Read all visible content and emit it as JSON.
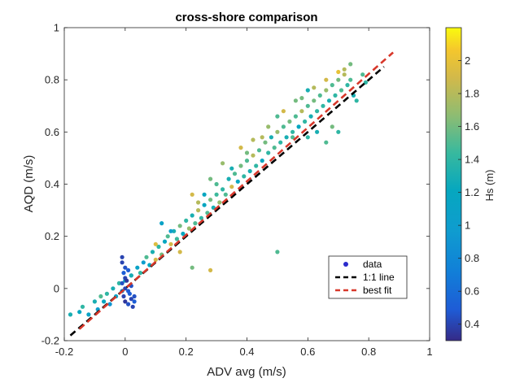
{
  "chart_data": {
    "type": "scatter",
    "title": "cross-shore comparison",
    "xlabel": "ADV avg (m/s)",
    "ylabel": "AQD (m/s)",
    "xlim": [
      -0.2,
      1
    ],
    "ylim": [
      -0.2,
      1
    ],
    "xticks": [
      "-0.2",
      "0",
      "0.2",
      "0.4",
      "0.6",
      "0.8",
      "1"
    ],
    "yticks": [
      "-0.2",
      "0",
      "0.2",
      "0.4",
      "0.6",
      "0.8",
      "1"
    ],
    "grid": false,
    "legend_position": "lower-right",
    "colorbar": {
      "label": "Hs (m)",
      "range": [
        0.3,
        2.2
      ],
      "ticks": [
        "0.4",
        "0.6",
        "0.8",
        "1",
        "1.2",
        "1.4",
        "1.6",
        "1.8",
        "2"
      ],
      "colormap": "parula"
    },
    "series": [
      {
        "name": "data",
        "kind": "points",
        "marker_color": "#2b2bcc",
        "points": [
          [
            -0.18,
            -0.1,
            1.3
          ],
          [
            -0.15,
            -0.09,
            1.2
          ],
          [
            -0.14,
            -0.07,
            1.4
          ],
          [
            -0.12,
            -0.1,
            1.1
          ],
          [
            -0.1,
            -0.05,
            1.3
          ],
          [
            -0.09,
            -0.08,
            1.0
          ],
          [
            -0.08,
            -0.03,
            1.5
          ],
          [
            -0.07,
            -0.05,
            1.2
          ],
          [
            -0.06,
            -0.02,
            1.4
          ],
          [
            -0.05,
            -0.06,
            0.9
          ],
          [
            -0.04,
            0.0,
            1.3
          ],
          [
            -0.03,
            -0.03,
            1.1
          ],
          [
            -0.02,
            0.02,
            1.4
          ],
          [
            -0.01,
            -0.01,
            0.8
          ],
          [
            0.0,
            0.03,
            1.2
          ],
          [
            -0.01,
            0.1,
            0.4
          ],
          [
            0.0,
            0.08,
            0.45
          ],
          [
            -0.005,
            0.06,
            0.5
          ],
          [
            0.0,
            0.04,
            0.4
          ],
          [
            0.005,
            0.03,
            0.35
          ],
          [
            -0.01,
            0.02,
            0.45
          ],
          [
            0.0,
            0.0,
            0.4
          ],
          [
            0.01,
            -0.01,
            0.5
          ],
          [
            -0.005,
            -0.03,
            0.4
          ],
          [
            0.0,
            -0.05,
            0.35
          ],
          [
            0.01,
            -0.06,
            0.45
          ],
          [
            0.02,
            -0.04,
            0.4
          ],
          [
            0.015,
            -0.02,
            0.5
          ],
          [
            0.02,
            0.01,
            0.45
          ],
          [
            0.025,
            -0.07,
            0.4
          ],
          [
            0.03,
            -0.05,
            0.5
          ],
          [
            0.03,
            -0.03,
            0.45
          ],
          [
            0.02,
            0.05,
            0.55
          ],
          [
            0.01,
            0.07,
            0.5
          ],
          [
            -0.01,
            0.12,
            0.4
          ],
          [
            0.02,
            0.05,
            1.3
          ],
          [
            0.04,
            0.08,
            1.1
          ],
          [
            0.05,
            0.06,
            1.4
          ],
          [
            0.06,
            0.1,
            1.0
          ],
          [
            0.07,
            0.12,
            1.5
          ],
          [
            0.08,
            0.09,
            1.2
          ],
          [
            0.09,
            0.14,
            1.3
          ],
          [
            0.1,
            0.11,
            1.9
          ],
          [
            0.11,
            0.16,
            1.4
          ],
          [
            0.12,
            0.13,
            1.6
          ],
          [
            0.13,
            0.18,
            1.2
          ],
          [
            0.14,
            0.2,
            1.5
          ],
          [
            0.15,
            0.17,
            1.9
          ],
          [
            0.16,
            0.22,
            1.3
          ],
          [
            0.17,
            0.19,
            1.45
          ],
          [
            0.18,
            0.24,
            1.6
          ],
          [
            0.19,
            0.21,
            1.2
          ],
          [
            0.2,
            0.26,
            1.4
          ],
          [
            0.21,
            0.23,
            1.7
          ],
          [
            0.22,
            0.28,
            1.3
          ],
          [
            0.23,
            0.25,
            1.5
          ],
          [
            0.24,
            0.3,
            1.8
          ],
          [
            0.25,
            0.27,
            1.4
          ],
          [
            0.26,
            0.32,
            1.2
          ],
          [
            0.27,
            0.29,
            1.5
          ],
          [
            0.28,
            0.34,
            1.6
          ],
          [
            0.29,
            0.31,
            1.3
          ],
          [
            0.3,
            0.36,
            1.45
          ],
          [
            0.31,
            0.33,
            1.7
          ],
          [
            0.32,
            0.38,
            1.4
          ],
          [
            0.33,
            0.36,
            1.5
          ],
          [
            0.34,
            0.42,
            1.3
          ],
          [
            0.35,
            0.39,
            1.9
          ],
          [
            0.36,
            0.44,
            1.5
          ],
          [
            0.37,
            0.41,
            1.2
          ],
          [
            0.38,
            0.47,
            1.6
          ],
          [
            0.39,
            0.43,
            1.4
          ],
          [
            0.4,
            0.49,
            1.5
          ],
          [
            0.41,
            0.45,
            1.3
          ],
          [
            0.42,
            0.51,
            1.8
          ],
          [
            0.43,
            0.47,
            1.4
          ],
          [
            0.44,
            0.53,
            1.5
          ],
          [
            0.45,
            0.49,
            1.2
          ],
          [
            0.46,
            0.56,
            1.6
          ],
          [
            0.47,
            0.52,
            1.4
          ],
          [
            0.48,
            0.58,
            1.3
          ],
          [
            0.49,
            0.54,
            1.5
          ],
          [
            0.5,
            0.6,
            1.7
          ],
          [
            0.51,
            0.56,
            1.4
          ],
          [
            0.52,
            0.62,
            1.5
          ],
          [
            0.53,
            0.58,
            1.3
          ],
          [
            0.54,
            0.64,
            1.6
          ],
          [
            0.55,
            0.6,
            1.4
          ],
          [
            0.56,
            0.66,
            1.5
          ],
          [
            0.57,
            0.62,
            1.2
          ],
          [
            0.58,
            0.68,
            1.8
          ],
          [
            0.59,
            0.64,
            1.4
          ],
          [
            0.6,
            0.7,
            1.5
          ],
          [
            0.61,
            0.66,
            1.3
          ],
          [
            0.62,
            0.72,
            1.6
          ],
          [
            0.63,
            0.68,
            1.4
          ],
          [
            0.64,
            0.74,
            1.5
          ],
          [
            0.65,
            0.7,
            1.4
          ],
          [
            0.66,
            0.76,
            1.7
          ],
          [
            0.67,
            0.72,
            1.3
          ],
          [
            0.68,
            0.78,
            1.5
          ],
          [
            0.69,
            0.74,
            1.4
          ],
          [
            0.7,
            0.8,
            1.6
          ],
          [
            0.71,
            0.76,
            1.5
          ],
          [
            0.72,
            0.82,
            1.8
          ],
          [
            0.73,
            0.78,
            1.4
          ],
          [
            0.74,
            0.8,
            1.5
          ],
          [
            0.75,
            0.74,
            1.3
          ],
          [
            0.76,
            0.72,
            1.4
          ],
          [
            0.55,
            0.58,
            1.5
          ],
          [
            0.6,
            0.58,
            1.4
          ],
          [
            0.63,
            0.6,
            1.3
          ],
          [
            0.66,
            0.56,
            1.5
          ],
          [
            0.7,
            0.6,
            1.4
          ],
          [
            0.68,
            0.62,
            1.6
          ],
          [
            0.6,
            0.76,
            1.3
          ],
          [
            0.56,
            0.72,
            1.6
          ],
          [
            0.5,
            0.66,
            1.5
          ],
          [
            0.45,
            0.58,
            1.8
          ],
          [
            0.4,
            0.52,
            1.6
          ],
          [
            0.35,
            0.46,
            1.3
          ],
          [
            0.3,
            0.4,
            1.5
          ],
          [
            0.26,
            0.36,
            1.2
          ],
          [
            0.1,
            0.17,
            1.95
          ],
          [
            0.12,
            0.25,
            1.1
          ],
          [
            0.15,
            0.22,
            1.0
          ],
          [
            0.18,
            0.14,
            1.9
          ],
          [
            0.22,
            0.36,
            1.9
          ],
          [
            0.24,
            0.33,
            1.8
          ],
          [
            0.28,
            0.42,
            1.6
          ],
          [
            0.32,
            0.48,
            1.7
          ],
          [
            0.38,
            0.54,
            1.9
          ],
          [
            0.42,
            0.57,
            1.8
          ],
          [
            0.47,
            0.62,
            1.7
          ],
          [
            0.52,
            0.68,
            1.9
          ],
          [
            0.58,
            0.73,
            1.6
          ],
          [
            0.62,
            0.77,
            1.8
          ],
          [
            0.66,
            0.8,
            1.9
          ],
          [
            0.7,
            0.83,
            2.0
          ],
          [
            0.72,
            0.84,
            1.8
          ],
          [
            0.78,
            0.82,
            1.5
          ],
          [
            0.79,
            0.79,
            1.4
          ],
          [
            0.74,
            0.86,
            1.6
          ],
          [
            0.5,
            0.14,
            1.5
          ],
          [
            0.28,
            0.07,
            1.9
          ],
          [
            0.22,
            0.08,
            1.6
          ]
        ]
      },
      {
        "name": "1:1 line",
        "kind": "line",
        "color": "#000000",
        "dash": "dashed",
        "x": [
          -0.18,
          0.85
        ],
        "y": [
          -0.18,
          0.85
        ]
      },
      {
        "name": "best fit",
        "kind": "line",
        "color": "#d8382b",
        "dash": "dashed",
        "x": [
          -0.15,
          0.88
        ],
        "y": [
          -0.155,
          0.905
        ]
      }
    ]
  }
}
